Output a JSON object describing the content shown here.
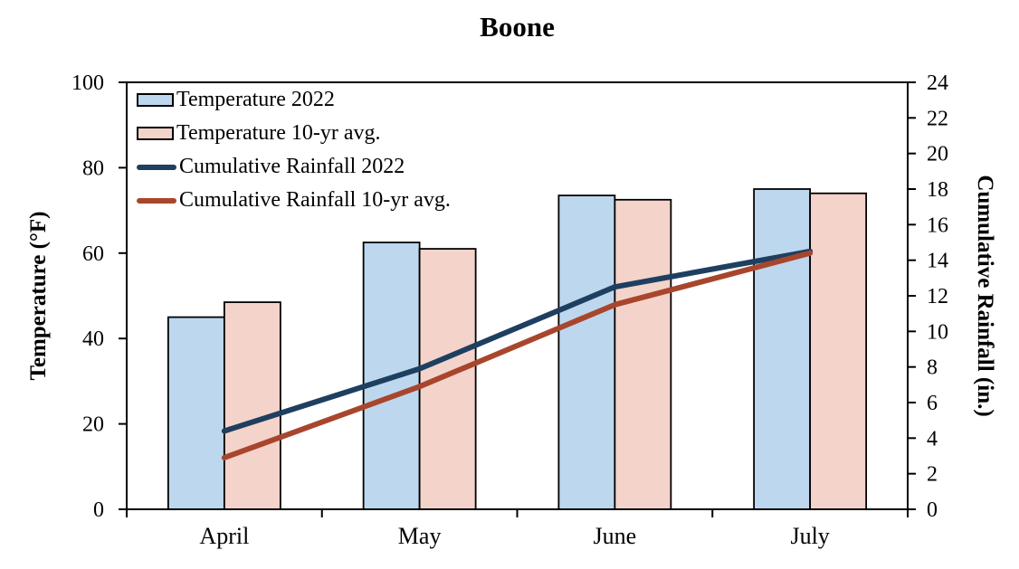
{
  "chart_data": {
    "type": "combo-bar-line",
    "title": "Boone",
    "categories": [
      "April",
      "May",
      "June",
      "July"
    ],
    "bar_series": [
      {
        "name": "Temperature 2022",
        "values": [
          45,
          62.5,
          73.5,
          75
        ],
        "fill": "#bdd7ee",
        "border": "#000000"
      },
      {
        "name": "Temperature 10-yr avg.",
        "values": [
          48.5,
          61,
          72.5,
          74
        ],
        "fill": "#f4d3ca",
        "border": "#000000"
      }
    ],
    "line_series": [
      {
        "name": "Cumulative Rainfall 2022",
        "values": [
          4.4,
          7.9,
          12.5,
          14.5
        ],
        "color": "#1e3f60"
      },
      {
        "name": "Cumulative Rainfall 10-yr avg.",
        "values": [
          2.9,
          6.9,
          11.5,
          14.4
        ],
        "color": "#a8462d"
      }
    ],
    "y_left": {
      "label": "Temperature (°F)",
      "min": 0,
      "max": 100,
      "ticks": [
        0,
        20,
        40,
        60,
        80,
        100
      ]
    },
    "y_right": {
      "label": "Cumulative Rainfall (in.)",
      "min": 0,
      "max": 24,
      "ticks": [
        0,
        2,
        4,
        6,
        8,
        10,
        12,
        14,
        16,
        18,
        20,
        22,
        24
      ]
    },
    "grid": false,
    "legend_position": "top-left-inside",
    "axis_color": "#000000"
  }
}
